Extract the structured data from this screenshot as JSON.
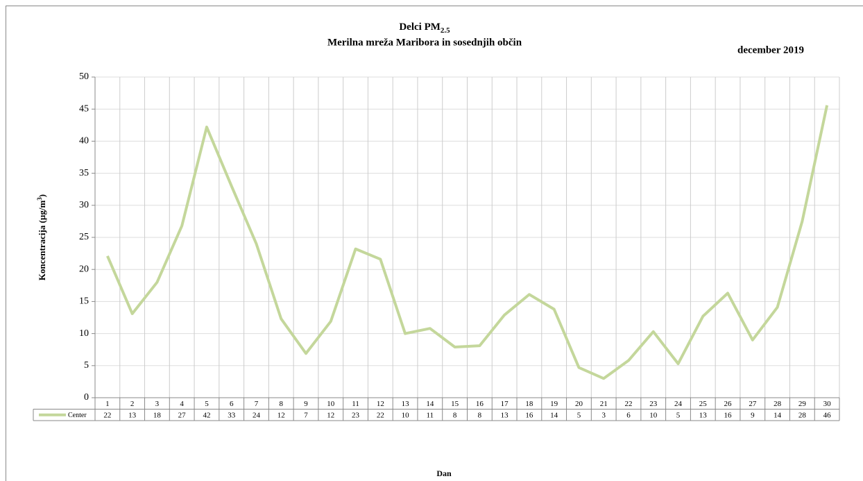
{
  "chart_data": {
    "type": "line",
    "title": "Delci PM",
    "title_subscript": "2.5",
    "subtitle": "Merilna mreža Maribora  in sosednjih občin",
    "date_label": "december 2019",
    "y_label": "Koncentracija  (µg/m",
    "y_label_superscript": "3",
    "y_label_end": ")",
    "x_label": "Dan",
    "categories": [
      "1",
      "2",
      "3",
      "4",
      "5",
      "6",
      "7",
      "8",
      "9",
      "10",
      "11",
      "12",
      "13",
      "14",
      "15",
      "16",
      "17",
      "18",
      "19",
      "20",
      "21",
      "22",
      "23",
      "24",
      "25",
      "26",
      "27",
      "28",
      "29",
      "30"
    ],
    "series": [
      {
        "name": "Center",
        "color": "#c4d79b",
        "values": [
          22.1,
          13.1,
          18,
          26.8,
          42.2,
          33,
          24,
          12.3,
          6.9,
          11.9,
          23.2,
          21.6,
          10,
          10.8,
          7.9,
          8.1,
          12.9,
          16.1,
          13.8,
          4.7,
          3.0,
          5.8,
          10.3,
          5.3,
          12.7,
          16.3,
          9.0,
          14.1,
          27.5,
          45.6
        ],
        "value_labels": [
          "22",
          "13",
          "18",
          "27",
          "42",
          "33",
          "24",
          "12",
          "7",
          "12",
          "23",
          "22",
          "10",
          "11",
          "8",
          "8",
          "13",
          "16",
          "14",
          "5",
          "3",
          "6",
          "10",
          "5",
          "13",
          "16",
          "9",
          "14",
          "28",
          "46"
        ]
      }
    ],
    "ylim": [
      0,
      50
    ],
    "yticks": [
      0,
      5,
      10,
      15,
      20,
      25,
      30,
      35,
      40,
      45,
      50
    ],
    "grid": true
  }
}
